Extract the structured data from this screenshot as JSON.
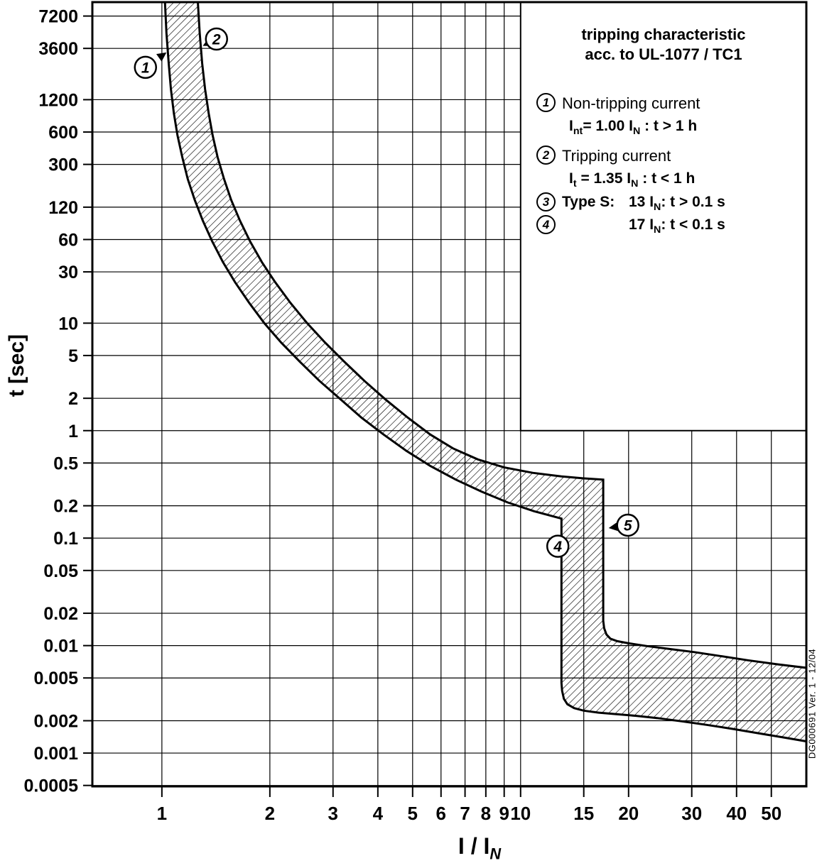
{
  "page": {
    "background": "#ffffff",
    "ink": "#000000"
  },
  "axis": {
    "y_title": "t [sec]",
    "x_title": "I / I_{N}"
  },
  "side_note": "DG000691  Ver. 1 - 12/04",
  "legend": {
    "title": [
      "tripping characteristic",
      "acc. to UL-1077 / TC1"
    ],
    "items": [
      {
        "num": "1",
        "label": "Non-tripping current",
        "formula": "I_{nt}= 1.00 I_{N} : t > 1 h"
      },
      {
        "num": "2",
        "label": "Tripping current",
        "formula": "I_{t} = 1.35 I_{N} : t < 1 h"
      },
      {
        "num": "3",
        "label": "Type S:",
        "formula": "13 I_{N}: t > 0.1 s"
      },
      {
        "num": "4",
        "label": "",
        "formula": "17 I_{N}: t < 0.1 s"
      }
    ]
  },
  "chart_data": {
    "type": "area",
    "title": "tripping characteristic acc. to UL-1077 / TC1",
    "xlabel": "I / IN",
    "ylabel": "t [sec]",
    "x_scale": "log",
    "y_scale": "log",
    "grid": true,
    "legend_position": "top-right",
    "xlim": [
      0.64,
      62.6
    ],
    "ylim": [
      0.00049,
      9700
    ],
    "x_ticks": [
      1,
      2,
      3,
      4,
      5,
      6,
      7,
      8,
      9,
      10,
      15,
      20,
      30,
      40,
      50
    ],
    "y_ticks": [
      7200,
      3600,
      1200,
      600,
      300,
      120,
      60,
      30,
      10,
      5,
      2,
      1,
      0.5,
      0.2,
      0.1,
      0.05,
      0.02,
      0.01,
      0.005,
      0.002,
      0.001,
      0.0005
    ],
    "band": {
      "lower_boundary": [
        [
          1.02,
          9700
        ],
        [
          1.03,
          5000
        ],
        [
          1.045,
          2600
        ],
        [
          1.06,
          1500
        ],
        [
          1.08,
          900
        ],
        [
          1.105,
          560
        ],
        [
          1.14,
          350
        ],
        [
          1.18,
          220
        ],
        [
          1.235,
          140
        ],
        [
          1.3,
          90
        ],
        [
          1.38,
          58
        ],
        [
          1.48,
          37
        ],
        [
          1.6,
          24
        ],
        [
          1.75,
          15.5
        ],
        [
          1.93,
          10
        ],
        [
          2.15,
          6.6
        ],
        [
          2.42,
          4.4
        ],
        [
          2.75,
          2.9
        ],
        [
          3.15,
          1.95
        ],
        [
          3.6,
          1.32
        ],
        [
          4.15,
          0.92
        ],
        [
          4.8,
          0.65
        ],
        [
          5.6,
          0.47
        ],
        [
          6.6,
          0.35
        ],
        [
          7.8,
          0.27
        ],
        [
          9.2,
          0.215
        ],
        [
          10.9,
          0.178
        ],
        [
          13,
          0.152
        ],
        [
          13,
          0.0045
        ],
        [
          13.05,
          0.0038
        ],
        [
          13.2,
          0.0032
        ],
        [
          13.5,
          0.00285
        ],
        [
          14.1,
          0.00262
        ],
        [
          15.0,
          0.00248
        ],
        [
          16.5,
          0.00238
        ],
        [
          18.5,
          0.0023
        ],
        [
          21,
          0.00222
        ],
        [
          24,
          0.00212
        ],
        [
          28,
          0.00198
        ],
        [
          33,
          0.00183
        ],
        [
          39,
          0.00168
        ],
        [
          46,
          0.00153
        ],
        [
          54,
          0.0014
        ],
        [
          63,
          0.00128
        ]
      ],
      "upper_boundary": [
        [
          1.26,
          9700
        ],
        [
          1.275,
          5000
        ],
        [
          1.295,
          2600
        ],
        [
          1.32,
          1500
        ],
        [
          1.35,
          900
        ],
        [
          1.385,
          560
        ],
        [
          1.43,
          350
        ],
        [
          1.49,
          220
        ],
        [
          1.56,
          140
        ],
        [
          1.65,
          90
        ],
        [
          1.76,
          58
        ],
        [
          1.9,
          37
        ],
        [
          2.07,
          24
        ],
        [
          2.28,
          15.5
        ],
        [
          2.54,
          10
        ],
        [
          2.85,
          6.6
        ],
        [
          3.22,
          4.4
        ],
        [
          3.67,
          2.9
        ],
        [
          4.2,
          1.95
        ],
        [
          4.85,
          1.32
        ],
        [
          5.6,
          0.92
        ],
        [
          6.5,
          0.68
        ],
        [
          7.6,
          0.54
        ],
        [
          9.0,
          0.455
        ],
        [
          10.8,
          0.405
        ],
        [
          13.0,
          0.375
        ],
        [
          15.0,
          0.36
        ],
        [
          17,
          0.35
        ],
        [
          17,
          0.017
        ],
        [
          17.1,
          0.0145
        ],
        [
          17.35,
          0.0127
        ],
        [
          17.8,
          0.0116
        ],
        [
          18.6,
          0.011
        ],
        [
          20,
          0.0105
        ],
        [
          22.5,
          0.0099
        ],
        [
          26,
          0.0093
        ],
        [
          30.5,
          0.0087
        ],
        [
          36,
          0.008
        ],
        [
          43,
          0.0073
        ],
        [
          52,
          0.0067
        ],
        [
          63,
          0.0062
        ]
      ]
    },
    "annotations": [
      {
        "label": "1",
        "at": [
          0.9,
          2400
        ],
        "target": [
          1.03,
          3300
        ]
      },
      {
        "label": "2",
        "at": [
          1.42,
          4400
        ],
        "target": [
          1.3,
          3800
        ]
      },
      {
        "label": "4",
        "at": [
          12.7,
          0.084
        ],
        "target": [
          13.1,
          0.108
        ]
      },
      {
        "label": "5",
        "at": [
          19.9,
          0.132
        ],
        "target": [
          17.6,
          0.124
        ]
      }
    ]
  }
}
